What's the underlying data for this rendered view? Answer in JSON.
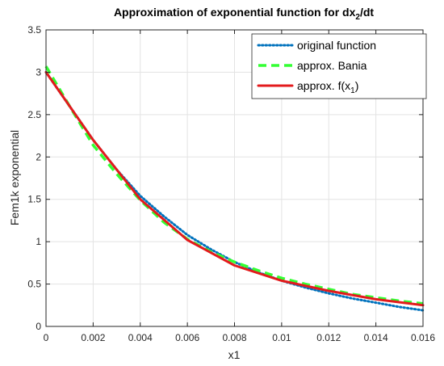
{
  "chart_data": {
    "type": "line",
    "title_main": "Approximation of exponential function for dx",
    "title_sub": "2",
    "title_tail": "/dt",
    "xlabel": "x1",
    "ylabel": "Fem1k exponential",
    "xlim": [
      0,
      0.016
    ],
    "ylim": [
      0,
      3.5
    ],
    "x_ticks": [
      0,
      0.002,
      0.004,
      0.006,
      0.008,
      0.01,
      0.012,
      0.014,
      0.016
    ],
    "x_tick_labels": [
      "0",
      "0.002",
      "0.004",
      "0.006",
      "0.008",
      "0.01",
      "0.012",
      "0.014",
      "0.016"
    ],
    "y_ticks": [
      0,
      0.5,
      1,
      1.5,
      2,
      2.5,
      3,
      3.5
    ],
    "y_tick_labels": [
      "0",
      "0.5",
      "1",
      "1.5",
      "2",
      "2.5",
      "3",
      "3.5"
    ],
    "grid": true,
    "legend_position": "top-right",
    "series": [
      {
        "name": "original function",
        "name_sub": "",
        "name_tail": "",
        "color": "#0072BD",
        "style": "dotted",
        "x": [
          0,
          0.001,
          0.002,
          0.003,
          0.004,
          0.005,
          0.006,
          0.007,
          0.008,
          0.009,
          0.01,
          0.011,
          0.012,
          0.013,
          0.014,
          0.015,
          0.016
        ],
        "y": [
          3.0,
          2.6,
          2.2,
          1.85,
          1.54,
          1.3,
          1.08,
          0.91,
          0.76,
          0.64,
          0.54,
          0.46,
          0.39,
          0.33,
          0.28,
          0.23,
          0.19
        ]
      },
      {
        "name": "approx. Bania",
        "name_sub": "",
        "name_tail": "",
        "color": "#33FF33",
        "style": "dashed",
        "x": [
          0,
          0.001,
          0.002,
          0.003,
          0.004,
          0.005,
          0.006,
          0.007,
          0.008,
          0.009,
          0.01,
          0.011,
          0.012,
          0.013,
          0.014,
          0.015,
          0.016
        ],
        "y": [
          3.07,
          2.6,
          2.14,
          1.8,
          1.49,
          1.23,
          1.03,
          0.88,
          0.76,
          0.66,
          0.57,
          0.5,
          0.44,
          0.38,
          0.34,
          0.3,
          0.27
        ]
      },
      {
        "name": "approx. f(x",
        "name_sub": "1",
        "name_tail": ")",
        "color": "#E31A1C",
        "style": "solid",
        "x": [
          0,
          0.002,
          0.004,
          0.006,
          0.008,
          0.01,
          0.012,
          0.014,
          0.016
        ],
        "y": [
          3.0,
          2.2,
          1.5,
          1.02,
          0.72,
          0.54,
          0.42,
          0.32,
          0.25
        ]
      }
    ]
  }
}
